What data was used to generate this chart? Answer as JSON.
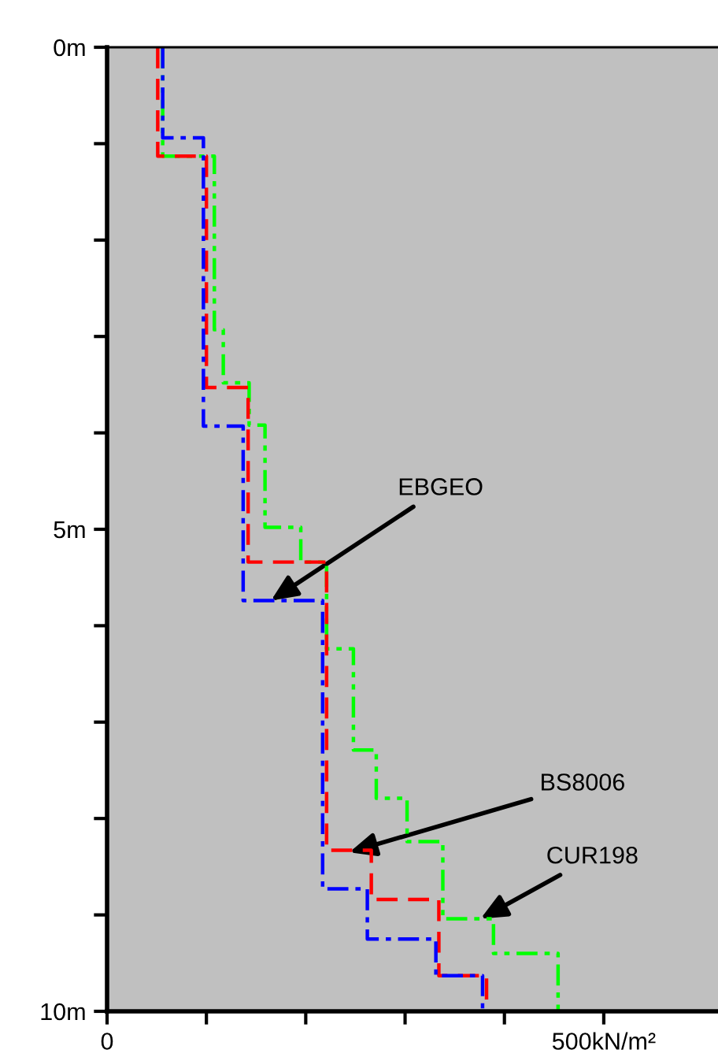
{
  "chart_data": {
    "type": "line",
    "series": [
      {
        "color": "#0000ff",
        "line_style": "dashdot",
        "x": [
          56,
          56,
          97,
          97,
          137,
          137,
          217,
          217,
          262,
          262,
          331,
          331,
          378,
          378
        ],
        "values": [
          0,
          0.94,
          0.94,
          3.93,
          3.93,
          5.74,
          5.74,
          8.73,
          8.73,
          9.25,
          9.25,
          9.63,
          9.63,
          10
        ]
      },
      {
        "color": "#ff0000",
        "line_style": "dashed",
        "x": [
          51,
          51,
          100,
          100,
          142,
          142,
          221,
          221,
          266,
          266,
          334,
          334,
          382,
          382
        ],
        "values": [
          0,
          1.13,
          1.13,
          3.53,
          3.53,
          5.34,
          5.34,
          8.33,
          8.33,
          8.84,
          8.84,
          9.63,
          9.63,
          10
        ]
      },
      {
        "color": "#00ff00",
        "line_style": "dashdotdot",
        "x": [
          56,
          56,
          108,
          108,
          117,
          117,
          143,
          143,
          159,
          159,
          195,
          195,
          221,
          221,
          248,
          248,
          271,
          271,
          302,
          302,
          338,
          338,
          389,
          389,
          454,
          454
        ],
        "values": [
          0,
          1.13,
          1.13,
          2.93,
          2.93,
          3.48,
          3.48,
          3.92,
          3.92,
          4.98,
          4.98,
          5.34,
          5.34,
          6.24,
          6.24,
          7.29,
          7.29,
          7.79,
          7.79,
          8.24,
          8.24,
          9.04,
          9.04,
          9.4,
          9.4,
          10
        ]
      }
    ],
    "xlim": [
      0,
      615
    ],
    "xticks": [
      0,
      {
        "value": 100,
        "label": null
      },
      {
        "value": 200,
        "label": null
      },
      {
        "value": 300,
        "label": null
      },
      {
        "value": 400,
        "label": null
      },
      {
        "value": 500,
        "label": "500kN/m²"
      }
    ],
    "ylim": [
      10,
      0
    ],
    "yticks": [
      {
        "value": 0,
        "label": "0m"
      },
      {
        "value": 1,
        "label": null
      },
      {
        "value": 2,
        "label": null
      },
      {
        "value": 3,
        "label": null
      },
      {
        "value": 4,
        "label": null
      },
      {
        "value": 5,
        "label": "5m"
      },
      {
        "value": 6,
        "label": null
      },
      {
        "value": 7,
        "label": null
      },
      {
        "value": 8,
        "label": null
      },
      {
        "value": 9,
        "label": null
      },
      {
        "value": 10,
        "label": "10m"
      }
    ],
    "annotations": [
      {
        "text": "EBGEO",
        "x": 165,
        "y": 5.74
      },
      {
        "text": "BS8006",
        "x": 244,
        "y": 8.35
      },
      {
        "text": "CUR198",
        "x": 376,
        "y": 9.04
      }
    ],
    "grid": false,
    "legend": false
  }
}
